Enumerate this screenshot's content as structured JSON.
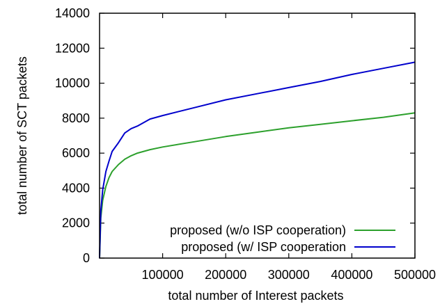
{
  "chart_data": {
    "type": "line",
    "title": "",
    "xlabel": "total number of Interest packets",
    "ylabel": "total number of SCT packets",
    "xlim": [
      0,
      500000
    ],
    "ylim": [
      0,
      14000
    ],
    "x_ticks": [
      100000,
      200000,
      300000,
      400000,
      500000
    ],
    "y_ticks": [
      0,
      2000,
      4000,
      6000,
      8000,
      10000,
      12000,
      14000
    ],
    "grid": false,
    "legend_position": "bottom-right",
    "series": [
      {
        "name": "proposed (w/o ISP cooperation)",
        "color": "#2ca02c",
        "x": [
          0,
          2000,
          5000,
          10000,
          15000,
          20000,
          30000,
          40000,
          50000,
          60000,
          80000,
          100000,
          150000,
          200000,
          250000,
          300000,
          350000,
          400000,
          450000,
          500000
        ],
        "y": [
          0,
          2300,
          3300,
          4100,
          4600,
          4950,
          5350,
          5650,
          5850,
          6000,
          6200,
          6350,
          6650,
          6950,
          7200,
          7450,
          7650,
          7850,
          8050,
          8300
        ]
      },
      {
        "name": "proposed (w/ ISP cooperation",
        "color": "#0000cc",
        "x": [
          0,
          2000,
          5000,
          10000,
          15000,
          20000,
          30000,
          40000,
          50000,
          60000,
          80000,
          100000,
          150000,
          200000,
          250000,
          300000,
          350000,
          400000,
          450000,
          500000
        ],
        "y": [
          0,
          2700,
          3900,
          4950,
          5550,
          6100,
          6600,
          7150,
          7400,
          7550,
          7950,
          8150,
          8600,
          9050,
          9400,
          9750,
          10100,
          10500,
          10850,
          11200
        ]
      }
    ]
  }
}
